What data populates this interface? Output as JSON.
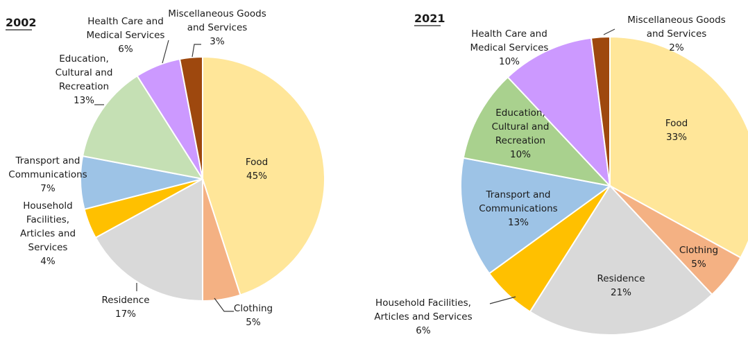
{
  "chart_data": [
    {
      "type": "pie",
      "title": "2002",
      "slices": [
        {
          "label": "Food",
          "value": 45,
          "pct": "45%",
          "color": "#FFE699"
        },
        {
          "label": "Clothing",
          "value": 5,
          "pct": "5%",
          "color": "#F4B183"
        },
        {
          "label": "Residence",
          "value": 17,
          "pct": "17%",
          "color": "#D9D9D9"
        },
        {
          "label": "Household Facilities, Articles and Services",
          "value": 4,
          "pct": "4%",
          "color": "#FFC000"
        },
        {
          "label": "Transport and Communications",
          "value": 7,
          "pct": "7%",
          "color": "#9DC3E6"
        },
        {
          "label": "Education, Cultural and Recreation",
          "value": 13,
          "pct": "13%",
          "color": "#C5E0B4"
        },
        {
          "label": "Health Care and Medical Services",
          "value": 6,
          "pct": "6%",
          "color": "#CC99FF"
        },
        {
          "label": "Miscellaneous Goods and Services",
          "value": 3,
          "pct": "3%",
          "color": "#9E480E"
        }
      ]
    },
    {
      "type": "pie",
      "title": "2021",
      "slices": [
        {
          "label": "Food",
          "value": 33,
          "pct": "33%",
          "color": "#FFE699"
        },
        {
          "label": "Clothing",
          "value": 5,
          "pct": "5%",
          "color": "#F4B183"
        },
        {
          "label": "Residence",
          "value": 21,
          "pct": "21%",
          "color": "#D9D9D9"
        },
        {
          "label": "Household Facilities, Articles and Services",
          "value": 6,
          "pct": "6%",
          "color": "#FFC000"
        },
        {
          "label": "Transport and Communications",
          "value": 13,
          "pct": "13%",
          "color": "#9DC3E6"
        },
        {
          "label": "Education, Cultural and Recreation",
          "value": 10,
          "pct": "10%",
          "color": "#A9D18E"
        },
        {
          "label": "Health Care and Medical Services",
          "value": 10,
          "pct": "10%",
          "color": "#CC99FF"
        },
        {
          "label": "Miscellaneous Goods and Services",
          "value": 2,
          "pct": "2%",
          "color": "#9E480E"
        }
      ]
    }
  ]
}
